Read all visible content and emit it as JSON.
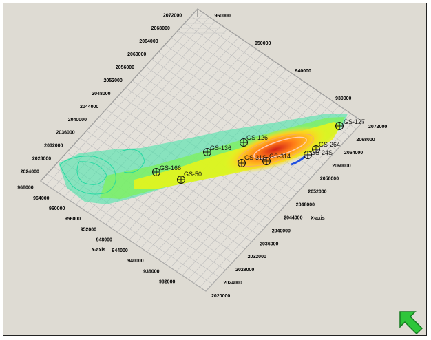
{
  "x_axis": {
    "title": "X-axis",
    "ticks": [
      "2020000",
      "2024000",
      "2028000",
      "2032000",
      "2036000",
      "2040000",
      "2044000",
      "2048000",
      "2052000",
      "2056000",
      "2060000",
      "2064000",
      "2068000",
      "2072000"
    ]
  },
  "y_axis": {
    "title": "Y-axis",
    "ticks": [
      "968000",
      "964000",
      "960000",
      "956000",
      "952000",
      "948000",
      "944000",
      "940000",
      "936000",
      "932000"
    ]
  },
  "back_x_ticks": [
    "2024000",
    "2028000",
    "2032000",
    "2036000",
    "2040000",
    "2044000",
    "2048000",
    "2052000",
    "2056000",
    "2060000",
    "2064000",
    "2068000",
    "2072000"
  ],
  "back_y_ticks": [
    "960000",
    "950000",
    "940000",
    "930000"
  ],
  "wells": [
    {
      "name": "GS-127"
    },
    {
      "name": "GS-264"
    },
    {
      "name": "GS-24S"
    },
    {
      "name": "GS-126"
    },
    {
      "name": "GS-136"
    },
    {
      "name": "GS-31S"
    },
    {
      "name": "GS-314"
    },
    {
      "name": "GS-166"
    },
    {
      "name": "GS-50"
    }
  ],
  "colors": {
    "background": "#dedbd3",
    "grid": "#b8b8b8",
    "plume_outer": "#35e0a0",
    "plume_mid": "#d8f020",
    "plume_core": "#ff9020",
    "plume_hot": "#e02020"
  },
  "nav_icon": "green-arrow-icon"
}
